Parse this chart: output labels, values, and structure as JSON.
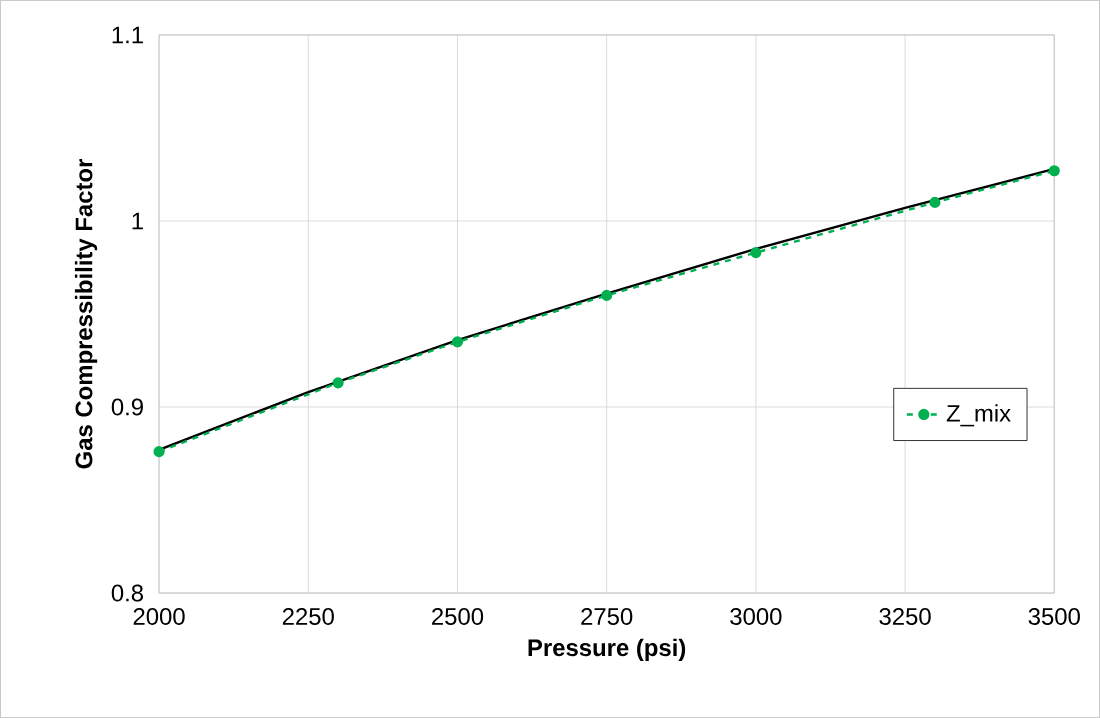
{
  "chart_data": {
    "type": "line",
    "xlabel": "Pressure (psi)",
    "ylabel": "Gas Compressibility Factor",
    "xlim": [
      2000,
      3500
    ],
    "xticks": [
      2000,
      2250,
      2500,
      2750,
      3000,
      3250,
      3500
    ],
    "ylim": [
      0.8,
      1.1
    ],
    "yticks": [
      0.8,
      0.9,
      1,
      1.1
    ],
    "grid": true,
    "legend": "right",
    "series": [
      {
        "color": "#000000",
        "x": [
          2000,
          2250,
          2500,
          2750,
          3000,
          3250,
          3500
        ],
        "values": [
          0.877,
          0.908,
          0.936,
          0.961,
          0.985,
          1.007,
          1.028
        ],
        "marker": "none",
        "line_style": "solid"
      },
      {
        "name": "Z_mix",
        "color": "#00b050",
        "x": [
          2000,
          2300,
          2500,
          2750,
          3000,
          3300,
          3500
        ],
        "values": [
          0.876,
          0.913,
          0.935,
          0.96,
          0.983,
          1.01,
          1.027
        ],
        "marker": "circle",
        "line_style": "dashed"
      }
    ]
  }
}
